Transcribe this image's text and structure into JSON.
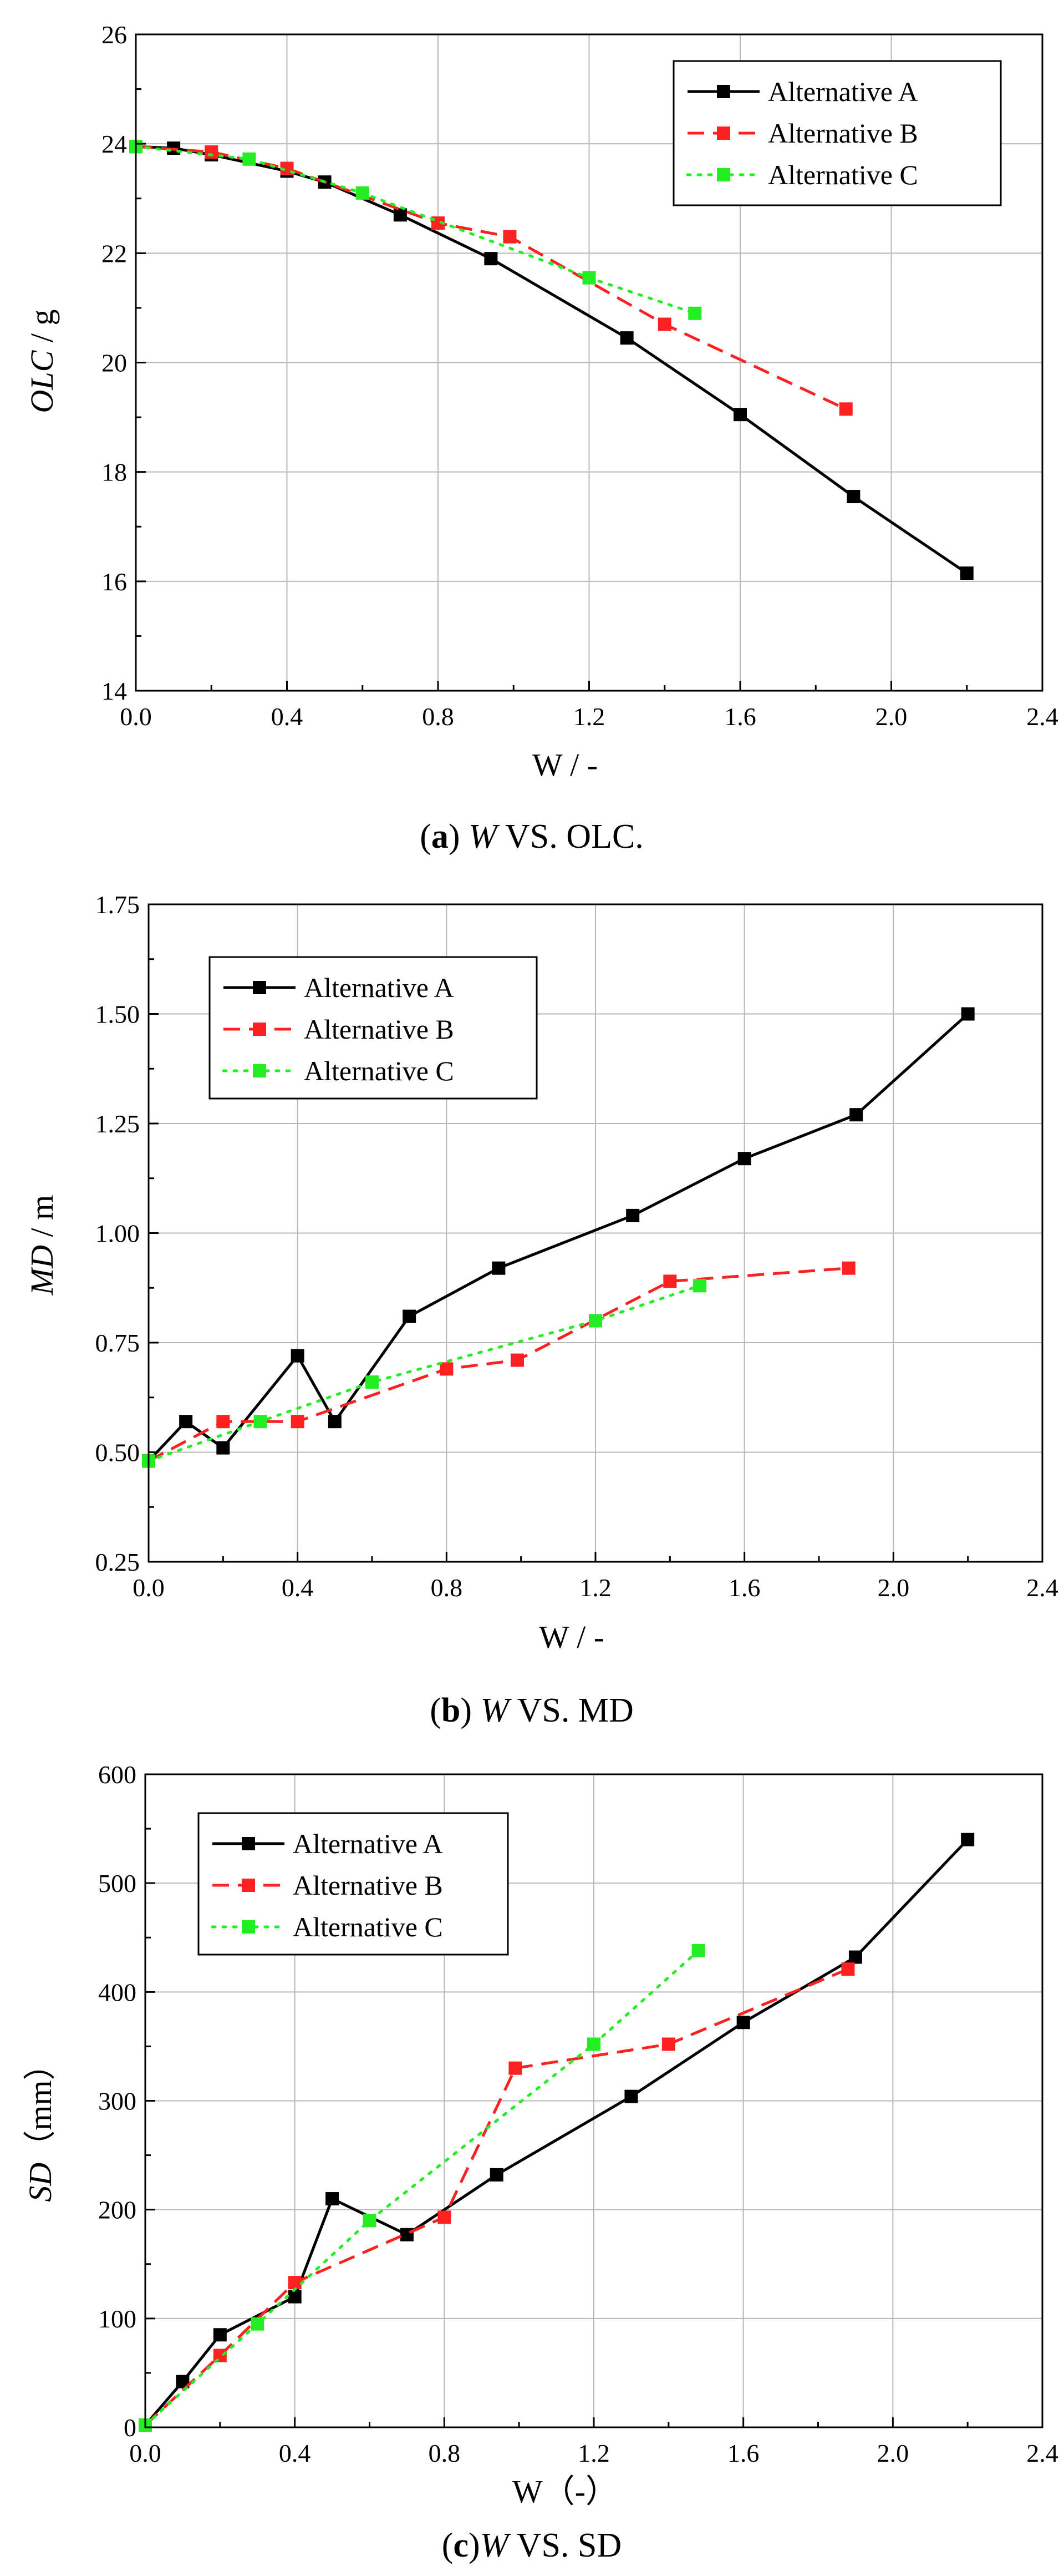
{
  "chart_data": [
    {
      "id": "a",
      "type": "line",
      "caption": {
        "letter": "a",
        "text": " VS. OLC.",
        "variable": "W"
      },
      "xlabel": "W / -",
      "ylabel": {
        "main": "OLC",
        "unit": " / g"
      },
      "xlim": [
        0,
        2.4
      ],
      "ylim": [
        14,
        26
      ],
      "xticks": [
        0,
        0.4,
        0.8,
        1.2,
        1.6,
        2.0,
        2.4
      ],
      "yticks": [
        14,
        16,
        18,
        20,
        22,
        24,
        26
      ],
      "xtick_labels": [
        "0.0",
        "0.4",
        "0.8",
        "1.2",
        "1.6",
        "2.0",
        "2.4"
      ],
      "ytick_labels": [
        "14",
        "16",
        "18",
        "20",
        "22",
        "24",
        "26"
      ],
      "legend_position": "top-right",
      "series": [
        {
          "name": "Alternative A",
          "color": "#000000",
          "dash": "solid",
          "x": [
            0,
            0.1,
            0.2,
            0.4,
            0.5,
            0.7,
            0.94,
            1.3,
            1.6,
            1.9,
            2.2
          ],
          "y": [
            23.95,
            23.92,
            23.8,
            23.5,
            23.3,
            22.7,
            21.9,
            20.45,
            19.05,
            17.55,
            16.15
          ]
        },
        {
          "name": "Alternative B",
          "color": "#ff2020",
          "dash": "dashed",
          "x": [
            0,
            0.2,
            0.4,
            0.8,
            0.99,
            1.4,
            1.88
          ],
          "y": [
            23.95,
            23.85,
            23.55,
            22.55,
            22.3,
            20.7,
            19.15
          ]
        },
        {
          "name": "Alternative C",
          "color": "#22ee22",
          "dash": "dotted",
          "x": [
            0,
            0.3,
            0.6,
            1.2,
            1.48
          ],
          "y": [
            23.95,
            23.72,
            23.1,
            21.55,
            20.9
          ]
        }
      ]
    },
    {
      "id": "b",
      "type": "line",
      "caption": {
        "letter": "b",
        "text": " VS. MD",
        "variable": "W"
      },
      "xlabel": "W / -",
      "ylabel": {
        "main": "MD",
        "unit": " / m"
      },
      "xlim": [
        0,
        2.4
      ],
      "ylim": [
        0.25,
        1.75
      ],
      "xticks": [
        0,
        0.4,
        0.8,
        1.2,
        1.6,
        2.0,
        2.4
      ],
      "yticks": [
        0.25,
        0.5,
        0.75,
        1.0,
        1.25,
        1.5,
        1.75
      ],
      "xtick_labels": [
        "0.0",
        "0.4",
        "0.8",
        "1.2",
        "1.6",
        "2.0",
        "2.4"
      ],
      "ytick_labels": [
        "0.25",
        "0.50",
        "0.75",
        "1.00",
        "1.25",
        "1.50",
        "1.75"
      ],
      "legend_position": "top-left",
      "series": [
        {
          "name": "Alternative A",
          "color": "#000000",
          "dash": "solid",
          "x": [
            0,
            0.1,
            0.2,
            0.4,
            0.5,
            0.7,
            0.94,
            1.3,
            1.6,
            1.9,
            2.2
          ],
          "y": [
            0.48,
            0.57,
            0.51,
            0.72,
            0.57,
            0.81,
            0.92,
            1.04,
            1.17,
            1.27,
            1.5
          ]
        },
        {
          "name": "Alternative B",
          "color": "#ff2020",
          "dash": "dashed",
          "x": [
            0,
            0.2,
            0.4,
            0.8,
            0.99,
            1.4,
            1.88
          ],
          "y": [
            0.48,
            0.57,
            0.57,
            0.69,
            0.71,
            0.89,
            0.92
          ]
        },
        {
          "name": "Alternative C",
          "color": "#22ee22",
          "dash": "dotted",
          "x": [
            0,
            0.3,
            0.6,
            1.2,
            1.48
          ],
          "y": [
            0.48,
            0.57,
            0.66,
            0.8,
            0.88
          ]
        }
      ]
    },
    {
      "id": "c",
      "type": "line",
      "caption": {
        "letter": "c",
        "text": " VS. SD",
        "variable": "W"
      },
      "xlabel": "W（-）",
      "ylabel": {
        "main": "SD",
        "unit": "（mm）"
      },
      "xlim": [
        0,
        2.4
      ],
      "ylim": [
        0,
        600
      ],
      "xticks": [
        0,
        0.4,
        0.8,
        1.2,
        1.6,
        2.0,
        2.4
      ],
      "yticks": [
        0,
        100,
        200,
        300,
        400,
        500,
        600
      ],
      "xtick_labels": [
        "0.0",
        "0.4",
        "0.8",
        "1.2",
        "1.6",
        "2.0",
        "2.4"
      ],
      "ytick_labels": [
        "0",
        "100",
        "200",
        "300",
        "400",
        "500",
        "600"
      ],
      "legend_position": "top-left",
      "series": [
        {
          "name": "Alternative A",
          "color": "#000000",
          "dash": "solid",
          "x": [
            0,
            0.1,
            0.2,
            0.4,
            0.5,
            0.7,
            0.94,
            1.3,
            1.6,
            1.9,
            2.2
          ],
          "y": [
            2,
            42,
            85,
            120,
            210,
            177,
            232,
            304,
            372,
            432,
            540
          ]
        },
        {
          "name": "Alternative B",
          "color": "#ff2020",
          "dash": "dashed",
          "x": [
            0,
            0.2,
            0.4,
            0.8,
            0.99,
            1.4,
            1.88
          ],
          "y": [
            2,
            66,
            133,
            193,
            330,
            352,
            421
          ]
        },
        {
          "name": "Alternative C",
          "color": "#22ee22",
          "dash": "dotted",
          "x": [
            0,
            0.3,
            0.6,
            1.2,
            1.48
          ],
          "y": [
            2,
            95,
            190,
            352,
            438
          ]
        }
      ]
    }
  ]
}
